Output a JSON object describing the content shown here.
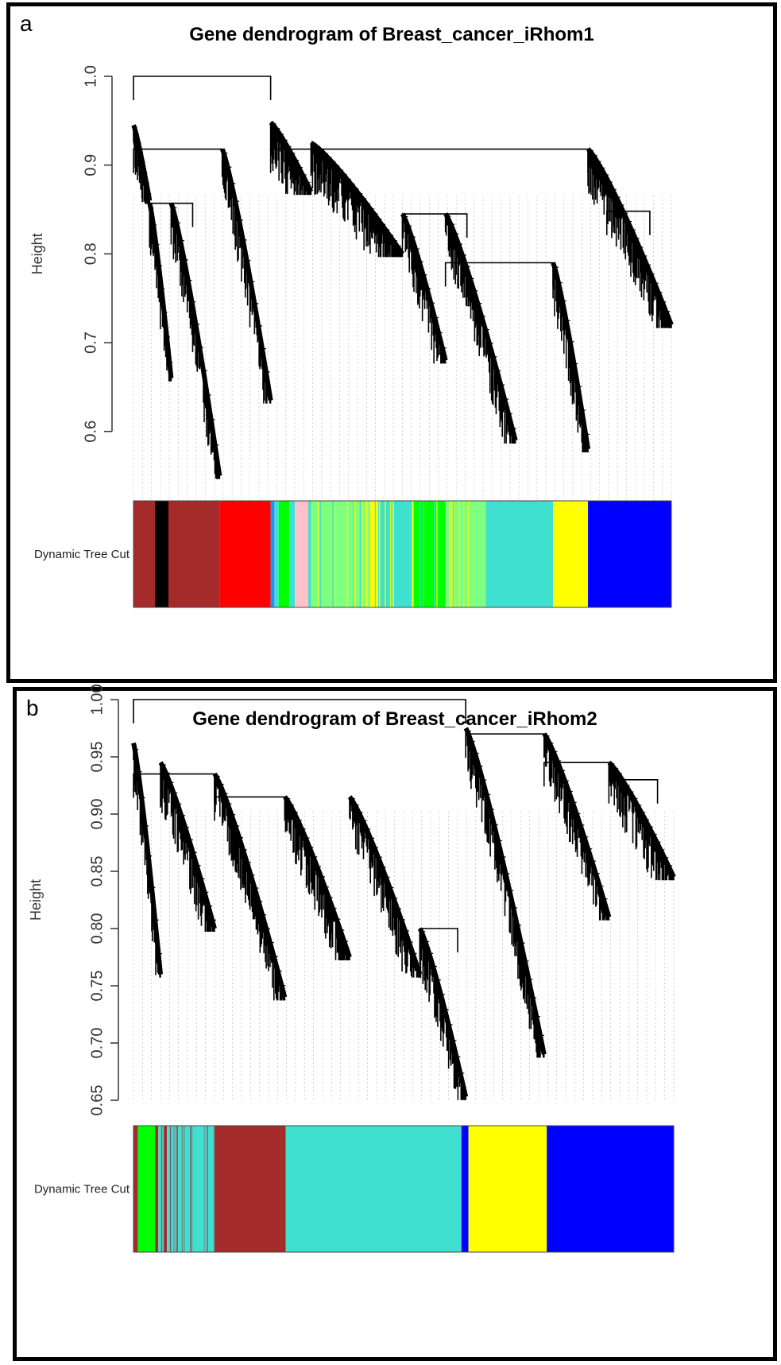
{
  "panels": [
    {
      "letter": "a",
      "colors_label": "Dynamic Tree Cut",
      "chart_data": {
        "type": "dendrogram",
        "title": "Gene dendrogram of Breast_cancer_iRhom1",
        "ylabel": "Height",
        "xlabel": "",
        "ylim": [
          0.52,
          1.0
        ],
        "yticks": [
          "0.6",
          "0.7",
          "0.8",
          "0.9",
          "1.0"
        ],
        "ytick_values": [
          0.6,
          0.7,
          0.8,
          0.9,
          1.0
        ],
        "merges": [
          {
            "from": 0.0,
            "to": 0.255,
            "height": 1.0
          },
          {
            "from": 0.0,
            "to": 0.165,
            "height": 0.918
          },
          {
            "from": 0.255,
            "to": 0.845,
            "height": 0.918
          },
          {
            "from": 0.03,
            "to": 0.11,
            "height": 0.857
          },
          {
            "from": 0.5,
            "to": 0.62,
            "height": 0.845
          },
          {
            "from": 0.58,
            "to": 0.78,
            "height": 0.79
          },
          {
            "from": 0.88,
            "to": 0.96,
            "height": 0.848
          }
        ],
        "clusters": [
          {
            "x0": 0.0,
            "x1": 0.03,
            "top": 0.945,
            "bottom": 0.86
          },
          {
            "x0": 0.03,
            "x1": 0.07,
            "top": 0.857,
            "bottom": 0.66
          },
          {
            "x0": 0.07,
            "x1": 0.16,
            "top": 0.857,
            "bottom": 0.55
          },
          {
            "x0": 0.165,
            "x1": 0.255,
            "top": 0.918,
            "bottom": 0.635
          },
          {
            "x0": 0.255,
            "x1": 0.33,
            "top": 0.948,
            "bottom": 0.87
          },
          {
            "x0": 0.33,
            "x1": 0.5,
            "top": 0.925,
            "bottom": 0.8
          },
          {
            "x0": 0.5,
            "x1": 0.58,
            "top": 0.845,
            "bottom": 0.68
          },
          {
            "x0": 0.58,
            "x1": 0.71,
            "top": 0.845,
            "bottom": 0.59
          },
          {
            "x0": 0.78,
            "x1": 0.845,
            "top": 0.79,
            "bottom": 0.58
          },
          {
            "x0": 0.845,
            "x1": 1.0,
            "top": 0.918,
            "bottom": 0.72
          }
        ],
        "module_colors": [
          {
            "color": "#a52a2a",
            "from": 0.0,
            "to": 0.04
          },
          {
            "color": "#000000",
            "from": 0.04,
            "to": 0.065
          },
          {
            "color": "#a52a2a",
            "from": 0.065,
            "to": 0.16
          },
          {
            "color": "#ff0000",
            "from": 0.16,
            "to": 0.255
          },
          {
            "color": "#1e90ff",
            "from": 0.255,
            "to": 0.262
          },
          {
            "color": "#40e0d0",
            "from": 0.262,
            "to": 0.27
          },
          {
            "color": "#00ff00",
            "from": 0.27,
            "to": 0.29
          },
          {
            "color": "#40e0d0",
            "from": 0.29,
            "to": 0.3
          },
          {
            "color": "#ffc0cb",
            "from": 0.3,
            "to": 0.325
          },
          {
            "color": "#40e0d0",
            "from": 0.325,
            "to": 0.33
          },
          {
            "color": "#7fff7f",
            "from": 0.33,
            "to": 0.44
          },
          {
            "color": "#ffff00",
            "from": 0.44,
            "to": 0.455
          },
          {
            "color": "#40e0d0",
            "from": 0.455,
            "to": 0.52
          },
          {
            "color": "#00ff00",
            "from": 0.52,
            "to": 0.58
          },
          {
            "color": "#7fff7f",
            "from": 0.58,
            "to": 0.655
          },
          {
            "color": "#40e0d0",
            "from": 0.655,
            "to": 0.78
          },
          {
            "color": "#ffff00",
            "from": 0.78,
            "to": 0.845
          },
          {
            "color": "#0000ff",
            "from": 0.845,
            "to": 1.0
          }
        ]
      }
    },
    {
      "letter": "b",
      "colors_label": "Dynamic Tree Cut",
      "chart_data": {
        "type": "dendrogram",
        "title": "Gene dendrogram of Breast_cancer_iRhom2",
        "ylabel": "Height",
        "xlabel": "",
        "ylim": [
          0.65,
          1.0
        ],
        "yticks": [
          "0.65",
          "0.70",
          "0.75",
          "0.80",
          "0.85",
          "0.90",
          "0.95",
          "1.00"
        ],
        "ytick_values": [
          0.65,
          0.7,
          0.75,
          0.8,
          0.85,
          0.9,
          0.95,
          1.0
        ],
        "merges": [
          {
            "from": 0.0,
            "to": 0.615,
            "height": 1.0
          },
          {
            "from": 0.0,
            "to": 0.15,
            "height": 0.935
          },
          {
            "from": 0.15,
            "to": 0.28,
            "height": 0.915
          },
          {
            "from": 0.53,
            "to": 0.6,
            "height": 0.8
          },
          {
            "from": 0.615,
            "to": 0.76,
            "height": 0.97
          },
          {
            "from": 0.76,
            "to": 0.88,
            "height": 0.945
          },
          {
            "from": 0.88,
            "to": 0.97,
            "height": 0.93
          }
        ],
        "clusters": [
          {
            "x0": 0.0,
            "x1": 0.05,
            "top": 0.962,
            "bottom": 0.76
          },
          {
            "x0": 0.05,
            "x1": 0.15,
            "top": 0.945,
            "bottom": 0.8
          },
          {
            "x0": 0.15,
            "x1": 0.28,
            "top": 0.935,
            "bottom": 0.74
          },
          {
            "x0": 0.28,
            "x1": 0.4,
            "top": 0.915,
            "bottom": 0.775
          },
          {
            "x0": 0.4,
            "x1": 0.53,
            "top": 0.915,
            "bottom": 0.76
          },
          {
            "x0": 0.53,
            "x1": 0.615,
            "top": 0.8,
            "bottom": 0.653
          },
          {
            "x0": 0.615,
            "x1": 0.76,
            "top": 0.975,
            "bottom": 0.69
          },
          {
            "x0": 0.76,
            "x1": 0.88,
            "top": 0.97,
            "bottom": 0.81
          },
          {
            "x0": 0.88,
            "x1": 1.0,
            "top": 0.945,
            "bottom": 0.845
          }
        ],
        "module_colors": [
          {
            "color": "#a52a2a",
            "from": 0.0,
            "to": 0.008
          },
          {
            "color": "#00ff00",
            "from": 0.008,
            "to": 0.04
          },
          {
            "color": "#a52a2a",
            "from": 0.04,
            "to": 0.046
          },
          {
            "color": "#40e0d0",
            "from": 0.046,
            "to": 0.056
          },
          {
            "color": "#a52a2a",
            "from": 0.056,
            "to": 0.062
          },
          {
            "color": "#40e0d0",
            "from": 0.062,
            "to": 0.15
          },
          {
            "color": "#a52a2a",
            "from": 0.15,
            "to": 0.282
          },
          {
            "color": "#40e0d0",
            "from": 0.282,
            "to": 0.607
          },
          {
            "color": "#0000ff",
            "from": 0.607,
            "to": 0.62
          },
          {
            "color": "#ffff00",
            "from": 0.62,
            "to": 0.765
          },
          {
            "color": "#0000ff",
            "from": 0.765,
            "to": 1.0
          }
        ]
      }
    }
  ],
  "chart_data": [
    {
      "type": "dendrogram",
      "title": "Gene dendrogram of Breast_cancer_iRhom1",
      "ylabel": "Height",
      "ylim": [
        0.52,
        1.0
      ],
      "yticks": [
        0.6,
        0.7,
        0.8,
        0.9,
        1.0
      ]
    },
    {
      "type": "dendrogram",
      "title": "Gene dendrogram of Breast_cancer_iRhom2",
      "ylabel": "Height",
      "ylim": [
        0.65,
        1.0
      ],
      "yticks": [
        0.65,
        0.7,
        0.75,
        0.8,
        0.85,
        0.9,
        0.95,
        1.0
      ]
    }
  ]
}
